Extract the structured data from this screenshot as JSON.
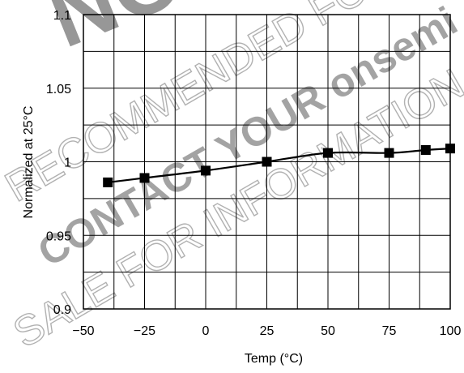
{
  "chart_data": {
    "type": "line",
    "title": "",
    "xlabel": "Temp (°C)",
    "ylabel": "Normalized at 25°C",
    "xlim": [
      -50,
      100
    ],
    "ylim": [
      0.9,
      1.1
    ],
    "x_ticks": [
      "−50",
      "−25",
      "0",
      "25",
      "50",
      "75",
      "100"
    ],
    "y_ticks": [
      "0.9",
      "0.95",
      "1",
      "1.05",
      "1.1"
    ],
    "grid": true,
    "series": [
      {
        "x": [
          -40,
          -25,
          0,
          25,
          50,
          75,
          90,
          100
        ],
        "y": [
          0.986,
          0.989,
          0.994,
          1.0,
          1.006,
          1.006,
          1.008,
          1.009
        ],
        "marker": "square",
        "color": "#000000"
      }
    ]
  },
  "watermark": {
    "big": "NO",
    "line1": "RECOMMENDED FOR NEW",
    "line2": "CONTACT YOUR onsemi",
    "line3": "SALE FOR INFORMATION"
  }
}
